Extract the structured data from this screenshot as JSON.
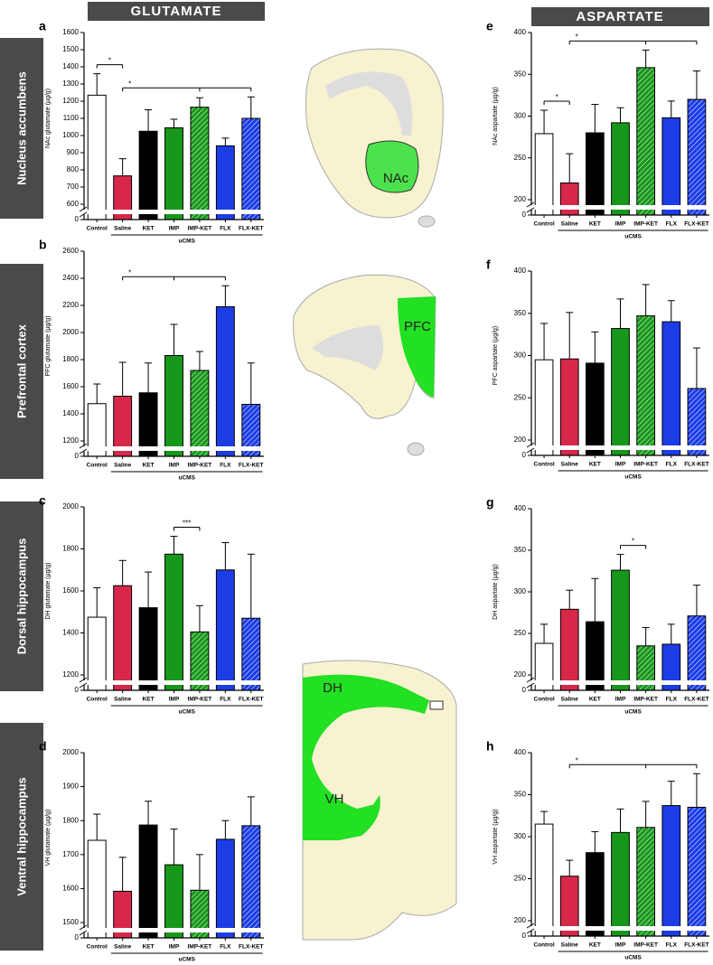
{
  "headers": [
    "GLUTAMATE",
    "ASPARTATE"
  ],
  "row_labels": [
    "Nucleus accumbens",
    "Prefrontal cortex",
    "Dorsal hippocampus",
    "Ventral hippocampus"
  ],
  "regions": [
    "NAc",
    "PFC",
    "DH",
    "VH"
  ],
  "chart_data": [
    {
      "type": "bar",
      "panel": "a",
      "ylabel": "NAc glutamate (µg/g)",
      "categories": [
        "Control",
        "Saline",
        "KET",
        "IMP",
        "IMP-KET",
        "FLX",
        "FLX-KET"
      ],
      "values": [
        1235,
        765,
        1025,
        1045,
        1165,
        940,
        1100
      ],
      "errors": [
        125,
        100,
        125,
        50,
        55,
        45,
        125
      ],
      "colors": [
        "#ffffff",
        "#d8284a",
        "#000000",
        "#17981a",
        "#17981a",
        "#1c3de6",
        "#1c3de6"
      ],
      "hatched": [
        false,
        false,
        false,
        false,
        true,
        false,
        true
      ],
      "ylim": [
        600,
        1600
      ],
      "yticks": [
        0,
        600,
        700,
        800,
        900,
        1000,
        1100,
        1200,
        1300,
        1400,
        1500,
        1600
      ],
      "axis_break": true,
      "group_label": "uCMS",
      "group": [
        "Saline",
        "FLX-KET"
      ],
      "significance": [
        {
          "from": "Control",
          "to": [
            "Saline"
          ],
          "label": "*"
        },
        {
          "from": "Saline",
          "to": [
            "IMP-KET",
            "FLX-KET"
          ],
          "label": "*"
        }
      ]
    },
    {
      "type": "bar",
      "panel": "b",
      "ylabel": "PFC glutamate (µg/g)",
      "categories": [
        "Control",
        "Saline",
        "KET",
        "IMP",
        "IMP-KET",
        "FLX",
        "FLX-KET"
      ],
      "values": [
        1475,
        1530,
        1555,
        1830,
        1720,
        2190,
        1470
      ],
      "errors": [
        145,
        250,
        220,
        230,
        140,
        155,
        305
      ],
      "colors": [
        "#ffffff",
        "#d8284a",
        "#000000",
        "#17981a",
        "#17981a",
        "#1c3de6",
        "#1c3de6"
      ],
      "hatched": [
        false,
        false,
        false,
        false,
        true,
        false,
        true
      ],
      "ylim": [
        1200,
        2600
      ],
      "yticks": [
        0,
        1200,
        1400,
        1600,
        1800,
        2000,
        2200,
        2400,
        2600
      ],
      "axis_break": true,
      "group_label": "uCMS",
      "group": [
        "Saline",
        "FLX-KET"
      ],
      "significance": [
        {
          "from": "Saline",
          "to": [
            "IMP",
            "FLX"
          ],
          "label": "*"
        }
      ]
    },
    {
      "type": "bar",
      "panel": "c",
      "ylabel": "DH glutamate (µg/g)",
      "categories": [
        "Control",
        "Saline",
        "KET",
        "IMP",
        "IMP-KET",
        "FLX",
        "FLX-KET"
      ],
      "values": [
        1475,
        1625,
        1520,
        1775,
        1405,
        1700,
        1470
      ],
      "errors": [
        140,
        120,
        170,
        85,
        125,
        130,
        305
      ],
      "colors": [
        "#ffffff",
        "#d8284a",
        "#000000",
        "#17981a",
        "#17981a",
        "#1c3de6",
        "#1c3de6"
      ],
      "hatched": [
        false,
        false,
        false,
        false,
        true,
        false,
        true
      ],
      "ylim": [
        1200,
        2000
      ],
      "yticks": [
        0,
        1200,
        1400,
        1600,
        1800,
        2000
      ],
      "axis_break": true,
      "group_label": "uCMS",
      "group": [
        "Saline",
        "FLX-KET"
      ],
      "significance": [
        {
          "from": "IMP",
          "to": [
            "IMP-KET"
          ],
          "label": "***"
        }
      ]
    },
    {
      "type": "bar",
      "panel": "d",
      "ylabel": "VH glutamate (µg/g)",
      "categories": [
        "Control",
        "Saline",
        "KET",
        "IMP",
        "IMP-KET",
        "FLX",
        "FLX-KET"
      ],
      "values": [
        1742,
        1592,
        1787,
        1670,
        1595,
        1745,
        1785
      ],
      "errors": [
        77,
        100,
        70,
        105,
        105,
        55,
        85
      ],
      "colors": [
        "#ffffff",
        "#d8284a",
        "#000000",
        "#17981a",
        "#17981a",
        "#1c3de6",
        "#1c3de6"
      ],
      "hatched": [
        false,
        false,
        false,
        false,
        true,
        false,
        true
      ],
      "ylim": [
        1500,
        2000
      ],
      "yticks": [
        0,
        1500,
        1600,
        1700,
        1800,
        1900,
        2000
      ],
      "axis_break": true,
      "group_label": "uCMS",
      "group": [
        "Saline",
        "FLX-KET"
      ],
      "significance": []
    },
    {
      "type": "bar",
      "panel": "e",
      "ylabel": "NAc aspartate (µg/g)",
      "categories": [
        "Control",
        "Saline",
        "KET",
        "IMP",
        "IMP-KET",
        "FLX",
        "FLX-KET"
      ],
      "values": [
        279,
        220,
        280,
        292,
        358,
        298,
        320
      ],
      "errors": [
        28,
        35,
        34,
        18,
        21,
        20,
        34
      ],
      "colors": [
        "#ffffff",
        "#d8284a",
        "#000000",
        "#17981a",
        "#17981a",
        "#1c3de6",
        "#1c3de6"
      ],
      "hatched": [
        false,
        false,
        false,
        false,
        true,
        false,
        true
      ],
      "ylim": [
        200,
        400
      ],
      "yticks": [
        0,
        200,
        250,
        300,
        350,
        400
      ],
      "axis_break": true,
      "group_label": "uCMS",
      "group": [
        "Saline",
        "FLX-KET"
      ],
      "significance": [
        {
          "from": "Control",
          "to": [
            "Saline"
          ],
          "label": "*"
        },
        {
          "from": "Saline",
          "to": [
            "IMP-KET",
            "FLX-KET"
          ],
          "label": "*"
        }
      ]
    },
    {
      "type": "bar",
      "panel": "f",
      "ylabel": "PFC aspartate (µg/g)",
      "categories": [
        "Control",
        "Saline",
        "KET",
        "IMP",
        "IMP-KET",
        "FLX",
        "FLX-KET"
      ],
      "values": [
        295,
        296,
        291,
        332,
        347,
        340,
        261
      ],
      "errors": [
        43,
        55,
        37,
        35,
        37,
        25,
        48
      ],
      "colors": [
        "#ffffff",
        "#d8284a",
        "#000000",
        "#17981a",
        "#17981a",
        "#1c3de6",
        "#1c3de6"
      ],
      "hatched": [
        false,
        false,
        false,
        false,
        true,
        false,
        true
      ],
      "ylim": [
        200,
        400
      ],
      "yticks": [
        0,
        200,
        250,
        300,
        350,
        400
      ],
      "axis_break": true,
      "group_label": "uCMS",
      "group": [
        "Saline",
        "FLX-KET"
      ],
      "significance": []
    },
    {
      "type": "bar",
      "panel": "g",
      "ylabel": "DH aspartate (µg/g)",
      "categories": [
        "Control",
        "Saline",
        "KET",
        "IMP",
        "IMP-KET",
        "FLX",
        "FLX-KET"
      ],
      "values": [
        238,
        279,
        264,
        326,
        235,
        237,
        271
      ],
      "errors": [
        23,
        23,
        52,
        19,
        22,
        24,
        37
      ],
      "colors": [
        "#ffffff",
        "#d8284a",
        "#000000",
        "#17981a",
        "#17981a",
        "#1c3de6",
        "#1c3de6"
      ],
      "hatched": [
        false,
        false,
        false,
        false,
        true,
        false,
        true
      ],
      "ylim": [
        200,
        400
      ],
      "yticks": [
        0,
        200,
        250,
        300,
        350,
        400
      ],
      "axis_break": true,
      "group_label": "uCMS",
      "group": [
        "Saline",
        "FLX-KET"
      ],
      "significance": [
        {
          "from": "IMP",
          "to": [
            "IMP-KET"
          ],
          "label": "*"
        }
      ]
    },
    {
      "type": "bar",
      "panel": "h",
      "ylabel": "VH aspartate (µg/g)",
      "categories": [
        "Control",
        "Saline",
        "KET",
        "IMP",
        "IMP-KET",
        "FLX",
        "FLX-KET"
      ],
      "values": [
        315,
        253,
        281,
        305,
        311,
        337,
        335
      ],
      "errors": [
        15,
        19,
        25,
        28,
        31,
        29,
        40
      ],
      "colors": [
        "#ffffff",
        "#d8284a",
        "#000000",
        "#17981a",
        "#17981a",
        "#1c3de6",
        "#1c3de6"
      ],
      "hatched": [
        false,
        false,
        false,
        false,
        true,
        false,
        true
      ],
      "ylim": [
        200,
        400
      ],
      "yticks": [
        0,
        200,
        250,
        300,
        350,
        400
      ],
      "axis_break": true,
      "group_label": "uCMS",
      "group": [
        "Saline",
        "FLX-KET"
      ],
      "significance": [
        {
          "from": "Saline",
          "to": [
            "IMP-KET",
            "FLX-KET"
          ],
          "label": "*"
        }
      ]
    }
  ]
}
